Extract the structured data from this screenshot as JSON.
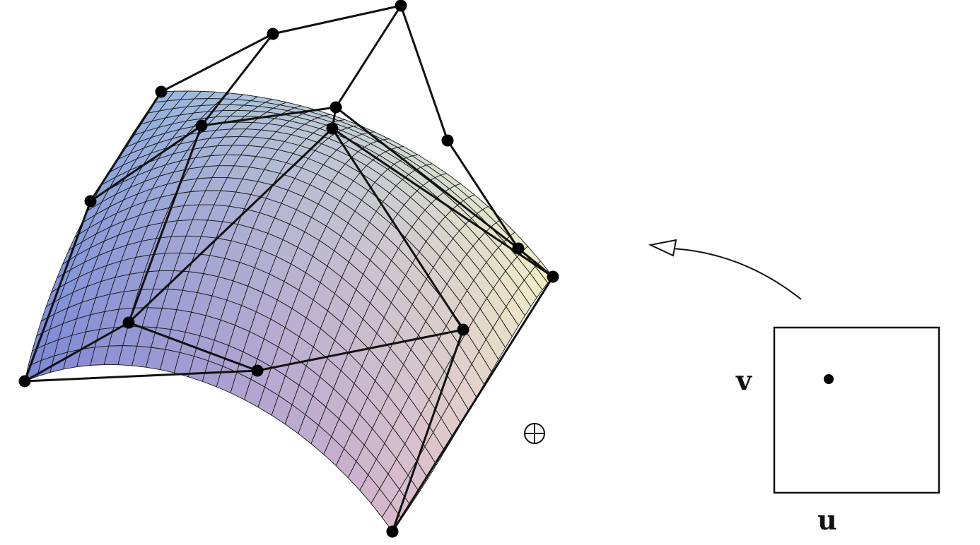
{
  "figure": {
    "domain_labels": {
      "u": "u",
      "v": "v"
    },
    "colors": {
      "surface_left": "#7a86d6",
      "surface_top": "#b2e3ea",
      "surface_right": "#f2f2c8",
      "surface_bottom": "#d8b8cc",
      "mesh_line": "#1a1a1a",
      "control_net": "#111111",
      "control_point": "#000000"
    },
    "icons": {
      "origin_marker": "circle-plus-icon",
      "mapping_arrow": "curved-arrow-icon"
    }
  }
}
